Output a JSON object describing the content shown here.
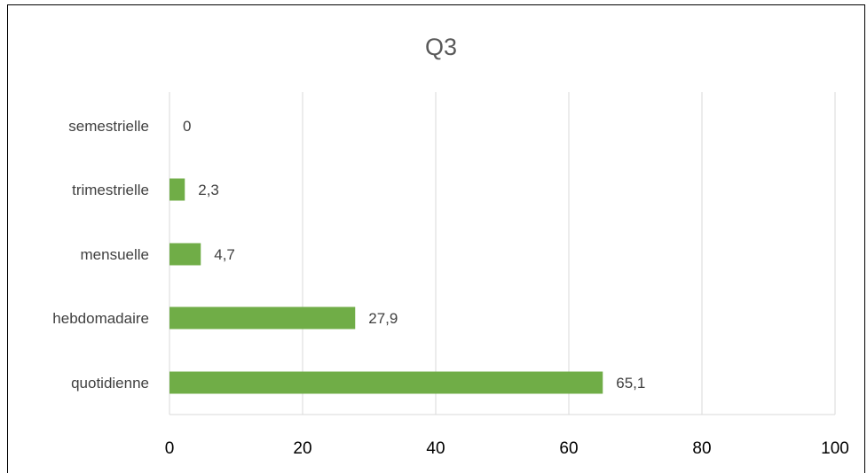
{
  "chart_data": {
    "type": "bar",
    "orientation": "horizontal",
    "title": "Q3",
    "categories": [
      "quotidienne",
      "hebdomadaire",
      "mensuelle",
      "trimestrielle",
      "semestrielle"
    ],
    "values": [
      65.1,
      27.9,
      4.7,
      2.3,
      0
    ],
    "value_labels": [
      "65,1",
      "27,9",
      "4,7",
      "2,3",
      "0"
    ],
    "xlim": [
      0,
      100
    ],
    "x_ticks": [
      0,
      20,
      40,
      60,
      80,
      100
    ],
    "x_tick_labels": [
      "0",
      "20",
      "40",
      "60",
      "80",
      "100"
    ],
    "grid": true,
    "legend": false,
    "bar_color": "#70ad47",
    "grid_color": "#d9d9d9"
  }
}
